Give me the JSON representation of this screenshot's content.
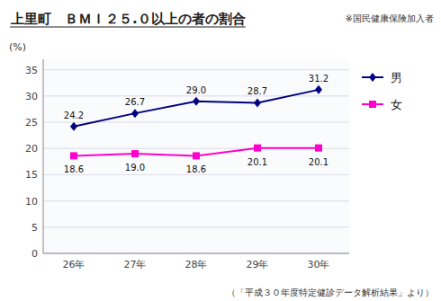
{
  "chart_data": {
    "type": "line",
    "title": "上里町　ＢＭＩ２５.０以上の者の割合",
    "subtitle": "※国民健康保険加入者",
    "annotations": [
      "（「平成３０年度特定健診データ解析結果」より）"
    ],
    "y_label": "(%)",
    "categories": [
      "26年",
      "27年",
      "28年",
      "29年",
      "30年"
    ],
    "series": [
      {
        "name": "男",
        "color": "#000080",
        "marker": "diamond",
        "values": [
          24.2,
          26.7,
          29.0,
          28.7,
          31.2
        ],
        "value_labels": [
          "24.2",
          "26.7",
          "29.0",
          "28.7",
          "31.2"
        ]
      },
      {
        "name": "女",
        "color": "#FF00CC",
        "marker": "square",
        "values": [
          18.6,
          19.0,
          18.6,
          20.1,
          20.1
        ],
        "value_labels": [
          "18.6",
          "19.0",
          "18.6",
          "20.1",
          "20.1"
        ]
      }
    ],
    "ylim": [
      0,
      37
    ],
    "yticks": [
      0,
      5,
      10,
      15,
      20,
      25,
      30,
      35
    ],
    "grid": true,
    "legend": "right",
    "data_labels": true
  }
}
